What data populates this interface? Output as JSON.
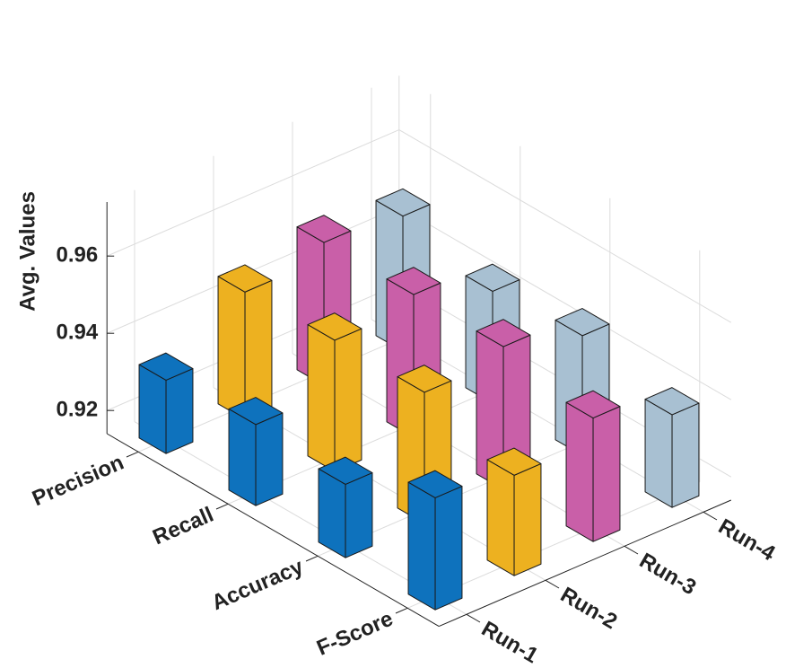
{
  "chart_data": {
    "type": "bar3d",
    "zlabel": "Avg. Values",
    "categories": [
      "Precision",
      "Recall",
      "Accuracy",
      "F-Score"
    ],
    "series": [
      {
        "name": "Run-1",
        "color": "#0e72bd",
        "values": [
          0.933,
          0.935,
          0.933,
          0.943
        ]
      },
      {
        "name": "Run-2",
        "color": "#edb120",
        "values": [
          0.947,
          0.948,
          0.948,
          0.94
        ]
      },
      {
        "name": "Run-3",
        "color": "#c95fa8",
        "values": [
          0.951,
          0.951,
          0.951,
          0.946
        ]
      },
      {
        "name": "Run-4",
        "color": "#a8c0d2",
        "values": [
          0.949,
          0.943,
          0.945,
          0.938
        ]
      }
    ],
    "zlim": [
      0.914,
      0.974
    ],
    "zticks": [
      0.92,
      0.94,
      0.96
    ],
    "grid": true
  }
}
